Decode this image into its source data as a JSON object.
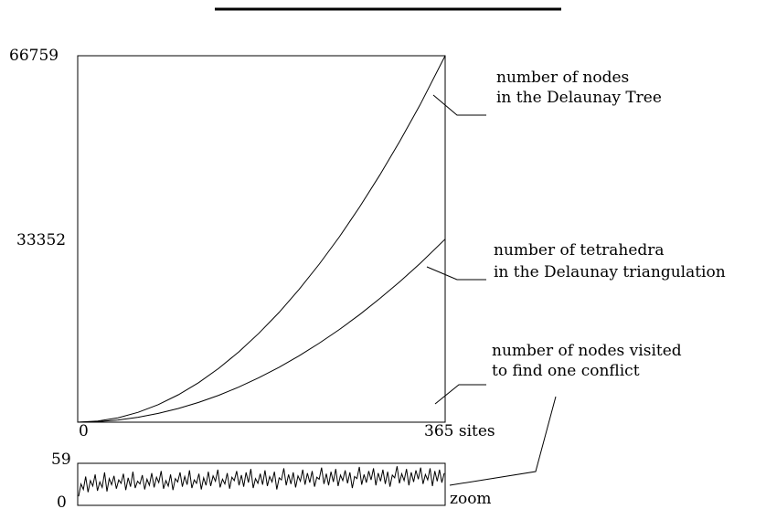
{
  "chart_data": [
    {
      "type": "line",
      "title": "",
      "xlabel": "",
      "ylabel": "",
      "xlim": [
        0,
        365
      ],
      "ylim": [
        0,
        66759
      ],
      "x_ticks": [
        {
          "value": 0,
          "label": "0"
        },
        {
          "value": 365,
          "label": "365 sites"
        }
      ],
      "y_ticks": [
        {
          "value": 66759,
          "label": "66759"
        },
        {
          "value": 33352,
          "label": "33352"
        }
      ],
      "grid": false,
      "series": [
        {
          "name": "number of nodes in the Delaunay Tree",
          "label_lines": [
            "number of nodes",
            "in the Delaunay Tree"
          ],
          "x": [
            0,
            20,
            40,
            60,
            80,
            100,
            120,
            140,
            160,
            180,
            200,
            220,
            240,
            260,
            280,
            300,
            320,
            340,
            365
          ],
          "y": [
            0,
            200,
            800,
            1800,
            3200,
            5000,
            7200,
            9800,
            12800,
            16200,
            20000,
            24200,
            28800,
            33800,
            39200,
            45000,
            51200,
            57800,
            66759
          ]
        },
        {
          "name": "number of tetrahedra in the Delaunay triangulation",
          "label_lines": [
            "number of tetrahedra",
            "in the Delaunay triangulation"
          ],
          "x": [
            0,
            20,
            40,
            60,
            80,
            100,
            120,
            140,
            160,
            180,
            200,
            220,
            240,
            260,
            280,
            300,
            320,
            340,
            365
          ],
          "y": [
            0,
            100,
            400,
            900,
            1600,
            2500,
            3600,
            4900,
            6400,
            8100,
            10000,
            12100,
            14400,
            16900,
            19600,
            22500,
            25600,
            28900,
            33352
          ]
        }
      ],
      "annotation": {
        "label_lines": [
          "number of nodes visited",
          "to find one conflict"
        ]
      }
    },
    {
      "type": "line",
      "title": "zoom",
      "xlim": [
        0,
        365
      ],
      "ylim": [
        0,
        59
      ],
      "y_ticks": [
        {
          "value": 59,
          "label": "59"
        },
        {
          "value": 0,
          "label": "0"
        }
      ],
      "grid": false,
      "series": [
        {
          "name": "number of nodes visited to find one conflict",
          "y": [
            12,
            30,
            22,
            41,
            18,
            35,
            27,
            44,
            20,
            33,
            25,
            47,
            19,
            38,
            29,
            42,
            23,
            36,
            31,
            45,
            21,
            39,
            26,
            48,
            24,
            34,
            30,
            43,
            22,
            37,
            28,
            46,
            25,
            40,
            32,
            49,
            23,
            35,
            27,
            44,
            21,
            38,
            33,
            47,
            26,
            41,
            29,
            50,
            24,
            36,
            31,
            45,
            22,
            39,
            28,
            48,
            27,
            42,
            34,
            51,
            25,
            37,
            30,
            46,
            23,
            40,
            35,
            49,
            28,
            43,
            26,
            47,
            32,
            52,
            24,
            38,
            31,
            45,
            29,
            50,
            27,
            41,
            33,
            48,
            22,
            39,
            36,
            53,
            28,
            44,
            30,
            47,
            25,
            42,
            34,
            51,
            29,
            46,
            32,
            49,
            26,
            40,
            37,
            54,
            30,
            45,
            28,
            48,
            33,
            52,
            27,
            43,
            35,
            50,
            31,
            47,
            24,
            41,
            38,
            55,
            29,
            44,
            32,
            49,
            36,
            53,
            28,
            46,
            34,
            51,
            30,
            48,
            26,
            43,
            39,
            56,
            31,
            45,
            35,
            52,
            28,
            47,
            33,
            50,
            37,
            54,
            30,
            44,
            36,
            53,
            27,
            49,
            34,
            51,
            32,
            46
          ]
        }
      ]
    }
  ]
}
